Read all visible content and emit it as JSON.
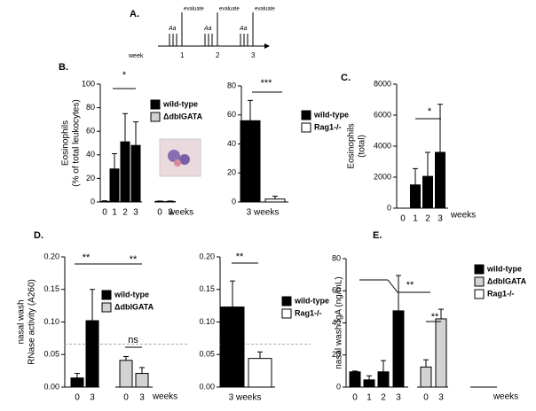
{
  "panel_a": {
    "label": "A.",
    "week_label": "week",
    "weeks": [
      "1",
      "2",
      "3"
    ],
    "evaluate": [
      "evaluate",
      "evaluate",
      "evaluate"
    ],
    "treatment": [
      "Aa",
      "Aa",
      "Aa"
    ]
  },
  "chart_data": [
    {
      "type": "bar",
      "panel": "B.",
      "ylabel": [
        "Eosinophils",
        "(% of total leukocytes)"
      ],
      "xlabel": "weeks",
      "categories": [
        "0",
        "1",
        "2",
        "3",
        "0",
        "3"
      ],
      "series": [
        {
          "name": "wild-type",
          "color": "#000000",
          "values": [
            0.5,
            28,
            51,
            48,
            null,
            null
          ],
          "errors": [
            0.5,
            13,
            24,
            20,
            null,
            null
          ]
        },
        {
          "name": "ΔdblGATA",
          "color": "#d3d3d3",
          "values": [
            null,
            null,
            null,
            null,
            0.5,
            0.5
          ],
          "errors": [
            null,
            null,
            null,
            null,
            0.3,
            0.3
          ]
        }
      ],
      "ylim": [
        0,
        100
      ],
      "yticks": [
        0,
        20,
        40,
        60,
        80,
        100
      ],
      "annotations": [
        "*"
      ]
    },
    {
      "type": "bar",
      "ylabel": [],
      "categories": [
        "3 weeks"
      ],
      "series": [
        {
          "name": "wild-type",
          "color": "#000000",
          "values": [
            56
          ],
          "errors": [
            14
          ]
        },
        {
          "name": "Rag1-/-",
          "color": "#ffffff",
          "values": [
            2
          ],
          "errors": [
            2
          ]
        }
      ],
      "ylim": [
        0,
        80
      ],
      "yticks": [
        0,
        20,
        40,
        60,
        80
      ],
      "annotations": [
        "***"
      ]
    },
    {
      "type": "bar",
      "panel": "C.",
      "ylabel": [
        "Eosinophils",
        "(total)"
      ],
      "xlabel": "weeks",
      "categories": [
        "0",
        "1",
        "2",
        "3"
      ],
      "series": [
        {
          "name": "wild-type",
          "color": "#000000",
          "values": [
            0,
            1500,
            2050,
            3600
          ],
          "errors": [
            0,
            1050,
            1550,
            3100
          ]
        }
      ],
      "ylim": [
        0,
        8000
      ],
      "yticks": [
        0,
        2000,
        4000,
        6000,
        8000
      ],
      "annotations": [
        "*"
      ],
      "legend": false
    },
    {
      "type": "bar",
      "panel": "D.",
      "ylabel": [
        "nasal wash",
        "RNase activity (A260)"
      ],
      "xlabel": "weeks",
      "categories": [
        "0",
        "3",
        "0",
        "3"
      ],
      "series": [
        {
          "name": "wild-type",
          "color": "#000000",
          "values": [
            0.014,
            0.102,
            null,
            null
          ],
          "errors": [
            0.007,
            0.048,
            null,
            null
          ]
        },
        {
          "name": "ΔdblGATA",
          "color": "#d3d3d3",
          "values": [
            null,
            null,
            0.041,
            0.021
          ],
          "errors": [
            null,
            null,
            0.006,
            0.009
          ]
        }
      ],
      "ylim": [
        0,
        0.2
      ],
      "yticks": [
        {
          "value": 0,
          "label": "0.00"
        },
        {
          "value": 0.05,
          "label": "0.05"
        },
        {
          "value": 0.1,
          "label": "0.10"
        },
        {
          "value": 0.15,
          "label": "0.15"
        },
        {
          "value": 0.2,
          "label": "0.20"
        }
      ],
      "hline": 0.066,
      "annotations": [
        "**",
        "**",
        "ns"
      ]
    },
    {
      "type": "bar",
      "ylabel": [],
      "categories": [
        "3 weeks"
      ],
      "series": [
        {
          "name": "wild-type",
          "color": "#000000",
          "values": [
            0.123
          ],
          "errors": [
            0.04
          ]
        },
        {
          "name": "Rag1-/-",
          "color": "#ffffff",
          "values": [
            0.044
          ],
          "errors": [
            0.01
          ]
        }
      ],
      "ylim": [
        0,
        0.2
      ],
      "yticks": [
        {
          "value": 0,
          "label": "0.00"
        },
        {
          "value": 0.05,
          "label": "0.05"
        },
        {
          "value": 0.1,
          "label": "0.10"
        },
        {
          "value": 0.15,
          "label": "0.15"
        },
        {
          "value": 0.2,
          "label": "0.20"
        }
      ],
      "hline": 0.066,
      "annotations": [
        "**"
      ]
    },
    {
      "type": "bar",
      "panel": "E.",
      "ylabel": [
        "nasal wash IgA (ng/mL)"
      ],
      "xlabel": "weeks",
      "categories": [
        "0",
        "1",
        "2",
        "3",
        "0",
        "3"
      ],
      "series": [
        {
          "name": "wild-type",
          "color": "#000000",
          "values": [
            9.5,
            4.5,
            9.5,
            47.5,
            null,
            null
          ],
          "errors": [
            0.5,
            2.5,
            7,
            22,
            null,
            null
          ]
        },
        {
          "name": "ΔdblGATA",
          "color": "#d3d3d3",
          "values": [
            null,
            null,
            null,
            null,
            12.5,
            42.5
          ],
          "errors": [
            null,
            null,
            null,
            null,
            4.5,
            6
          ]
        },
        {
          "name": "Rag1-/-",
          "color": "#ffffff",
          "values": [
            null,
            null,
            null,
            null,
            null,
            null
          ]
        }
      ],
      "ylim": [
        0,
        80
      ],
      "yticks": [
        0,
        20,
        40,
        60,
        80
      ],
      "annotations": [
        "**",
        "**"
      ]
    }
  ]
}
